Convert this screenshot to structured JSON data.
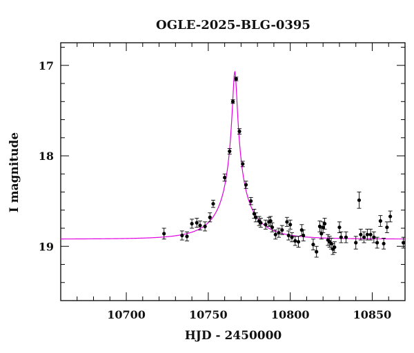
{
  "chart_data": {
    "type": "scatter",
    "title": "OGLE-2025-BLG-0395",
    "xlabel": "HJD - 2450000",
    "ylabel": "I magnitude",
    "xlim": [
      10660,
      10870
    ],
    "ylim": [
      19.6,
      16.75
    ],
    "y_inverted": true,
    "x_major_ticks": [
      10700,
      10750,
      10800,
      10850
    ],
    "y_major_ticks": [
      17,
      18,
      19
    ],
    "x_minor_step": 10,
    "y_minor_step": 0.2,
    "grid": false,
    "colors": {
      "points": "#000000",
      "model": "#e000e0",
      "axes": "#000000"
    },
    "model": {
      "name": "",
      "type": "point-lens fit",
      "t0": 10766.2,
      "u0": 0.05,
      "tE": 25,
      "baseline_mag": 18.92,
      "peak_mag": 17.07
    },
    "series": [
      {
        "name": "",
        "x": [
          10723,
          10734,
          10737,
          10740,
          10743,
          10745,
          10748,
          10751,
          10753,
          10760,
          10763,
          10765,
          10767,
          10769,
          10771,
          10773,
          10776,
          10778,
          10779,
          10781,
          10782,
          10785,
          10787,
          10788,
          10789,
          10791,
          10793,
          10795,
          10798,
          10799,
          10800,
          10801,
          10803,
          10805,
          10807,
          10808,
          10814,
          10816,
          10818,
          10819,
          10820,
          10821,
          10823,
          10824,
          10825,
          10826,
          10827,
          10830,
          10831,
          10834,
          10840,
          10842,
          10843,
          10845,
          10847,
          10849,
          10851,
          10853,
          10855,
          10857,
          10859,
          10861,
          10869
        ],
        "y": [
          18.86,
          18.88,
          18.89,
          18.75,
          18.74,
          18.77,
          18.78,
          18.68,
          18.53,
          18.24,
          17.95,
          17.4,
          17.15,
          17.73,
          18.09,
          18.32,
          18.5,
          18.64,
          18.68,
          18.72,
          18.74,
          18.76,
          18.73,
          18.72,
          18.79,
          18.87,
          18.85,
          18.82,
          18.73,
          18.88,
          18.76,
          18.9,
          18.94,
          18.95,
          18.82,
          18.88,
          18.98,
          19.06,
          18.78,
          18.86,
          18.79,
          18.75,
          18.93,
          18.95,
          18.97,
          19.03,
          19.01,
          18.79,
          18.9,
          18.9,
          18.96,
          18.49,
          18.87,
          18.9,
          18.87,
          18.87,
          18.9,
          18.96,
          18.72,
          18.97,
          18.79,
          18.67,
          18.96
        ],
        "yerr": [
          0.06,
          0.05,
          0.05,
          0.05,
          0.05,
          0.05,
          0.05,
          0.05,
          0.04,
          0.04,
          0.03,
          0.02,
          0.02,
          0.03,
          0.03,
          0.04,
          0.04,
          0.05,
          0.05,
          0.05,
          0.05,
          0.05,
          0.05,
          0.05,
          0.05,
          0.05,
          0.05,
          0.05,
          0.05,
          0.05,
          0.05,
          0.05,
          0.05,
          0.06,
          0.06,
          0.06,
          0.06,
          0.06,
          0.06,
          0.06,
          0.06,
          0.06,
          0.06,
          0.06,
          0.06,
          0.06,
          0.06,
          0.06,
          0.06,
          0.06,
          0.07,
          0.09,
          0.06,
          0.06,
          0.06,
          0.06,
          0.06,
          0.06,
          0.06,
          0.06,
          0.06,
          0.06,
          0.06
        ]
      }
    ]
  }
}
